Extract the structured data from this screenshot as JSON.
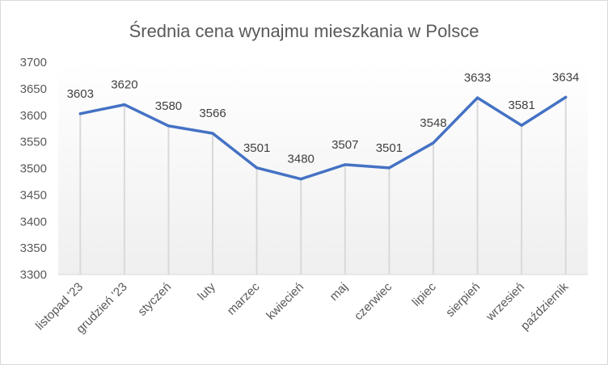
{
  "chart_data": {
    "type": "line",
    "title": "Średnia cena wynajmu mieszkania  w Polsce",
    "categories": [
      "listopad '23",
      "grudzień '23",
      "styczeń",
      "luty",
      "marzec",
      "kwiecień",
      "maj",
      "czerwiec",
      "lipiec",
      "sierpień",
      "wrzesień",
      "październik"
    ],
    "series": [
      {
        "values": [
          3603,
          3620,
          3580,
          3566,
          3501,
          3480,
          3507,
          3501,
          3548,
          3633,
          3581,
          3634
        ]
      }
    ],
    "ylim": [
      3300,
      3700
    ],
    "yticks": [
      3300,
      3350,
      3400,
      3450,
      3500,
      3550,
      3600,
      3650,
      3700
    ],
    "grid": false,
    "drop_lines": true,
    "data_labels": true,
    "legend": "none",
    "colors": {
      "line": "#4472C4",
      "drop_line": "#d9d9d9",
      "plot_gradient_bottom": "#efefef"
    }
  }
}
